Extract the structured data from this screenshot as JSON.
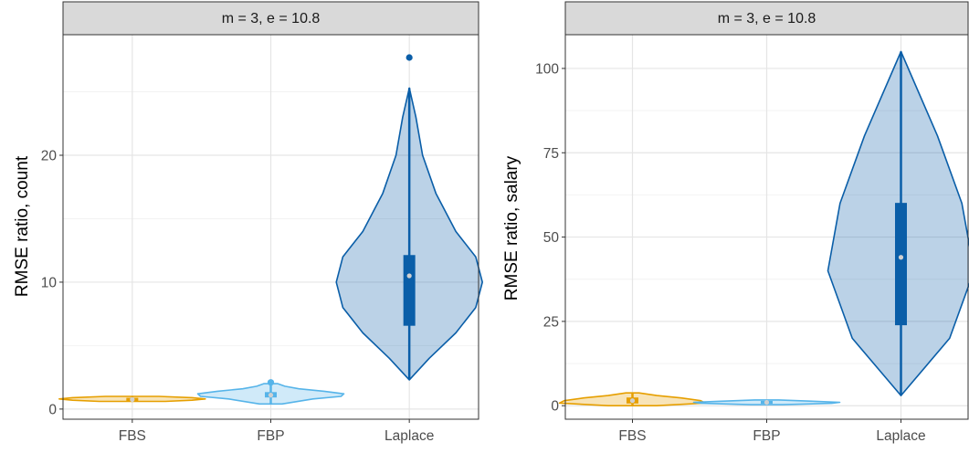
{
  "colors": {
    "panel_border": "#333333",
    "strip_fill": "#d9d9d9",
    "grid_major": "#e5e5e5",
    "grid_minor": "#f2f2f2",
    "tick_text": "#4d4d4d",
    "FBS": "#e69f00",
    "FBP": "#56b4e9",
    "Laplace": "#0a5ea8"
  },
  "chart_data": [
    {
      "type": "violin",
      "strip_label": "m = 3, e = 10.8",
      "xlabel": "",
      "ylabel": "RMSE ratio, count",
      "categories": [
        "FBS",
        "FBP",
        "Laplace"
      ],
      "ylim": [
        -0.8,
        29.5
      ],
      "yticks": [
        0,
        10,
        20
      ],
      "grid": true,
      "series": [
        {
          "category": "FBS",
          "min": 0.6,
          "max": 1.0,
          "q1": 0.65,
          "median": 0.75,
          "q3": 0.85,
          "mean": 0.75,
          "outliers": [],
          "density": [
            [
              0.6,
              0.25
            ],
            [
              0.7,
              0.45
            ],
            [
              0.8,
              0.55
            ],
            [
              0.9,
              0.45
            ],
            [
              1.0,
              0.2
            ]
          ]
        },
        {
          "category": "FBP",
          "min": 0.4,
          "max": 2.1,
          "q1": 0.95,
          "median": 1.1,
          "q3": 1.3,
          "mean": 1.15,
          "outliers": [
            2.1
          ],
          "density": [
            [
              0.4,
              0.08
            ],
            [
              0.8,
              0.3
            ],
            [
              1.0,
              0.5
            ],
            [
              1.2,
              0.52
            ],
            [
              1.4,
              0.38
            ],
            [
              1.6,
              0.2
            ],
            [
              1.8,
              0.1
            ],
            [
              2.0,
              0.05
            ]
          ]
        },
        {
          "category": "Laplace",
          "min": 2.3,
          "max": 25.3,
          "q1": 6.6,
          "median": 10.5,
          "q3": 12.1,
          "mean": 10.5,
          "outliers": [
            27.7
          ],
          "density": [
            [
              2.3,
              0.0
            ],
            [
              4,
              0.03
            ],
            [
              6,
              0.07
            ],
            [
              8,
              0.1
            ],
            [
              10,
              0.11
            ],
            [
              12,
              0.1
            ],
            [
              14,
              0.07
            ],
            [
              17,
              0.04
            ],
            [
              20,
              0.02
            ],
            [
              23,
              0.01
            ],
            [
              25.3,
              0.0
            ]
          ]
        }
      ]
    },
    {
      "type": "violin",
      "strip_label": "m = 3, e = 10.8",
      "xlabel": "",
      "ylabel": "RMSE ratio, salary",
      "categories": [
        "FBS",
        "FBP",
        "Laplace"
      ],
      "ylim": [
        -4,
        110
      ],
      "yticks": [
        0,
        25,
        50,
        75,
        100
      ],
      "grid": true,
      "series": [
        {
          "category": "FBS",
          "min": 0.0,
          "max": 3.8,
          "q1": 0.8,
          "median": 1.5,
          "q3": 2.3,
          "mean": 1.5,
          "outliers": [],
          "density": [
            [
              0,
              0.15
            ],
            [
              0.8,
              0.45
            ],
            [
              1.5,
              0.42
            ],
            [
              2.3,
              0.3
            ],
            [
              3.0,
              0.15
            ],
            [
              3.8,
              0.04
            ]
          ]
        },
        {
          "category": "FBP",
          "min": 0.3,
          "max": 1.7,
          "q1": 0.7,
          "median": 1.0,
          "q3": 1.3,
          "mean": 1.0,
          "outliers": [],
          "density": [
            [
              0.3,
              0.2
            ],
            [
              0.7,
              0.8
            ],
            [
              1.0,
              0.9
            ],
            [
              1.3,
              0.6
            ],
            [
              1.7,
              0.15
            ]
          ]
        },
        {
          "category": "Laplace",
          "min": 3.0,
          "max": 105,
          "q1": 24,
          "median": 44,
          "q3": 60,
          "mean": 44,
          "outliers": [],
          "density": [
            [
              3,
              0.0
            ],
            [
              20,
              0.02
            ],
            [
              40,
              0.03
            ],
            [
              60,
              0.025
            ],
            [
              80,
              0.015
            ],
            [
              105,
              0.0
            ]
          ]
        }
      ]
    }
  ]
}
